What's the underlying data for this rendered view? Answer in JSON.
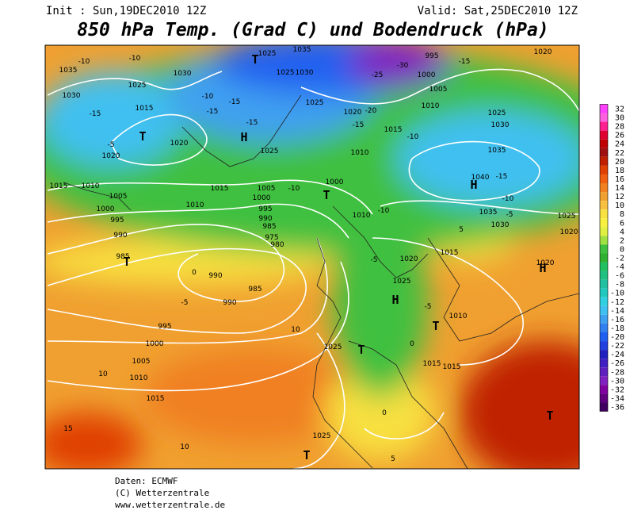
{
  "header": {
    "init": "Init : Sun,19DEC2010 12Z",
    "valid": "Valid: Sat,25DEC2010 12Z",
    "title": "850 hPa Temp. (Grad C) und Bodendruck (hPa)"
  },
  "colorbar": {
    "labels": [
      32,
      30,
      28,
      26,
      24,
      22,
      20,
      18,
      16,
      14,
      12,
      10,
      8,
      6,
      4,
      2,
      0,
      -2,
      -4,
      -6,
      -8,
      -10,
      -12,
      -14,
      -16,
      -18,
      -20,
      -22,
      -24,
      -26,
      -28,
      -30,
      -32,
      -34,
      -36
    ],
    "colors": [
      "#ff40ff",
      "#ff60e0",
      "#ff2090",
      "#e00030",
      "#c00000",
      "#a01010",
      "#c02000",
      "#e04000",
      "#f06010",
      "#f08020",
      "#f0a030",
      "#f8c040",
      "#f8e040",
      "#f8f040",
      "#e0f040",
      "#a0e040",
      "#40c040",
      "#30b030",
      "#20c060",
      "#20c080",
      "#20c0a0",
      "#20c8c0",
      "#30d0e0",
      "#40c0f0",
      "#40a0f0",
      "#3080f0",
      "#2060f0",
      "#2040e0",
      "#2020c0",
      "#4020c0",
      "#6020c0",
      "#8020c0",
      "#8000a0",
      "#600080",
      "#400060"
    ]
  },
  "map_labels": [
    "1035",
    "1030",
    "1025",
    "-10",
    "-10",
    "1030",
    "-15",
    "1015",
    "-5",
    "1020",
    "T",
    "1020",
    "-10",
    "-15",
    "-15",
    "-15",
    "H",
    "1025",
    "1025",
    "1035",
    "1025",
    "1030",
    "1025",
    "T",
    "995",
    "-30",
    "-25",
    "1000",
    "1005",
    "-15",
    "1020",
    "1010",
    "1020",
    "-20",
    "-15",
    "1015",
    "-10",
    "1010",
    "1025",
    "1030",
    "1035",
    "1040",
    "-15",
    "H",
    "-10",
    "1035",
    "-5",
    "1030",
    "1025",
    "1020",
    "1015",
    "1010",
    "1005",
    "1000",
    "995",
    "990",
    "T",
    "985",
    "1015",
    "1010",
    "1005",
    "1000",
    "-10",
    "995",
    "990",
    "985",
    "T",
    "1000",
    "980",
    "975",
    "0",
    "990",
    "-5",
    "990",
    "985",
    "995",
    "1000",
    "1005",
    "10",
    "1010",
    "1015",
    "10",
    "1025",
    "T",
    "1025",
    "T",
    "0",
    "5",
    "15",
    "10",
    "T",
    "H",
    "1020",
    "1015",
    "1020",
    "1025",
    "H",
    "-5",
    "1010",
    "T",
    "1015",
    "1015",
    "0",
    "-5",
    "1010",
    "-10",
    "5"
  ],
  "footer": [
    "Daten: ECMWF",
    "(C) Wetterzentrale",
    "www.wetterzentrale.de"
  ]
}
